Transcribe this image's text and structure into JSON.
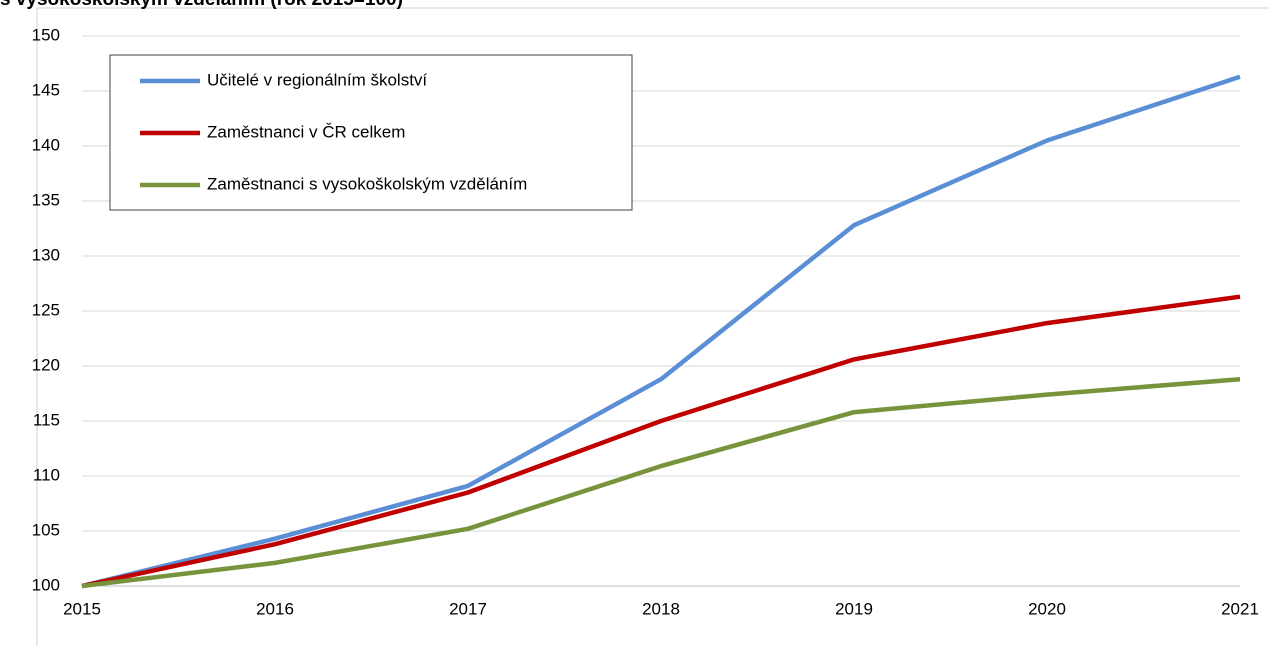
{
  "chart_data": {
    "type": "line",
    "title": "s vysokoškolským vzděláním (rok 2015=100)",
    "categories": [
      "2015",
      "2016",
      "2017",
      "2018",
      "2019",
      "2020",
      "2021"
    ],
    "series": [
      {
        "name": "Učitelé v regionálním školství",
        "color": "#5b8fd5",
        "values": [
          100,
          104.3,
          109.1,
          118.8,
          132.8,
          140.5,
          146.3
        ]
      },
      {
        "name": "Zaměstnanci v ČR celkem",
        "color": "#c00000",
        "values": [
          100,
          103.8,
          108.5,
          115.0,
          120.6,
          123.9,
          126.3
        ]
      },
      {
        "name": "Zaměstnanci s vysokoškolským vzděláním",
        "color": "#77933c",
        "values": [
          100,
          102.1,
          105.2,
          110.9,
          115.8,
          117.4,
          118.8
        ]
      }
    ],
    "ylim": [
      100,
      150
    ],
    "yticks": [
      100,
      105,
      110,
      115,
      120,
      125,
      130,
      135,
      140,
      145,
      150
    ],
    "grid": true,
    "legend": "top-left"
  }
}
